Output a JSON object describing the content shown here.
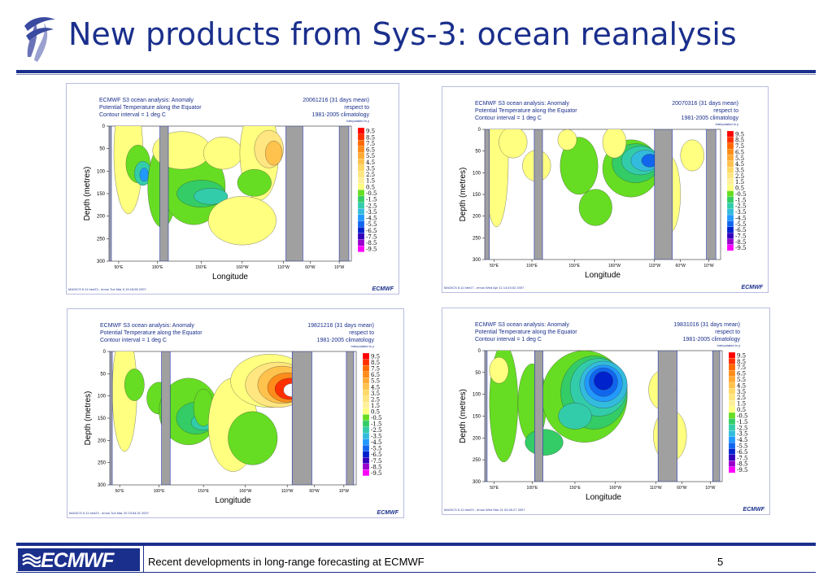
{
  "slide": {
    "title": "New products from Sys-3: ocean reanalysis",
    "footer_text": "Recent developments in long-range forecasting at ECMWF",
    "page_number": "5",
    "footer_logo": "ECMWF",
    "accent_color": "#1a2f8c"
  },
  "legend_levels": [
    "9.5",
    "8.5",
    "7.5",
    "6.5",
    "5.5",
    "4.5",
    "3.5",
    "2.5",
    "1.5",
    "0.5",
    "-0.5",
    "-1.5",
    "-2.5",
    "-3.5",
    "-4.5",
    "-5.5",
    "-6.5",
    "-7.5",
    "-8.5",
    "-9.5"
  ],
  "legend_colors": [
    "#ff0000",
    "#ff3000",
    "#ff6a00",
    "#ff8c1a",
    "#ffaa33",
    "#ffc24d",
    "#ffd866",
    "#ffe680",
    "#fff099",
    "#ffff80",
    "#66dd22",
    "#33cc66",
    "#33ccaa",
    "#33bbdd",
    "#2299ff",
    "#1166ee",
    "#0022cc",
    "#3300bb",
    "#9900cc",
    "#ff00ff"
  ],
  "panels": [
    {
      "header_left": [
        "ECMWF S3 ocean analysis: Anomaly",
        "Potential Temperature along the Equator",
        "Contour interval = 1 deg C"
      ],
      "header_right": [
        "20061216 (31 days mean)",
        "respect to",
        "1981-2005 climatology"
      ],
      "interp": "Interpolated in y",
      "credit": "MAGICS 6.11 bee23 - emos Tue Mar  6 15:18:58 2007",
      "brand": "ECMWF",
      "ylabel": "Depth (metres)",
      "xlabel": "Longitude",
      "yticks": [
        "0",
        "50",
        "100",
        "150",
        "200",
        "250",
        "300"
      ],
      "xticks": [
        "50°E",
        "100°E",
        "150°E",
        "160°W",
        "110°W",
        "60°W",
        "10°W"
      ]
    },
    {
      "header_left": [
        "ECMWF S3 ocean analysis: Anomaly",
        "Potential Temperature along the Equator",
        "Contour interval = 1 deg C"
      ],
      "header_right": [
        "20070316 (31 days mean)",
        "respect to",
        "1981-2005 climatology"
      ],
      "interp": "Interpolated in y",
      "credit": "MAGICS 6.11 bee17 - emos Wed Apr 11 14:43:02 2007",
      "brand": "ECMWF",
      "ylabel": "Depth (metres)",
      "xlabel": "Longitude",
      "yticks": [
        "0",
        "50",
        "100",
        "150",
        "200",
        "250",
        "300"
      ],
      "xticks": [
        "50°E",
        "100°E",
        "150°E",
        "160°W",
        "110°W",
        "60°W",
        "10°W"
      ]
    },
    {
      "header_left": [
        "ECMWF S3 ocean analysis: Anomaly",
        "Potential Temperature along the Equator",
        "Contour interval = 1 deg C"
      ],
      "header_right": [
        "19821216 (31 days mean)",
        "respect to",
        "1981-2005 climatology"
      ],
      "interp": "Interpolated in y",
      "credit": "MAGICS 6.11 bee23 - emos Tue Mar 20 23:54:31 2007",
      "brand": "ECMWF",
      "ylabel": "Depth (metres)",
      "xlabel": "Longitude",
      "yticks": [
        "0",
        "50",
        "100",
        "150",
        "200",
        "250",
        "300"
      ],
      "xticks": [
        "50°E",
        "100°E",
        "150°E",
        "160°W",
        "110°W",
        "60°W",
        "10°W"
      ]
    },
    {
      "header_left": [
        "ECMWF S3 ocean analysis: Anomaly",
        "Potential Temperature along the Equator",
        "Contour interval = 1 deg C"
      ],
      "header_right": [
        "19831016 (31 days mean)",
        "respect to",
        "1981-2005 climatology"
      ],
      "interp": "Interpolated in y",
      "credit": "MAGICS 6.11 bee23 - emos Wed Mar 21 03:26:27 2007",
      "brand": "ECMWF",
      "ylabel": "Depth (metres)",
      "xlabel": "Longitude",
      "yticks": [
        "0",
        "50",
        "100",
        "150",
        "200",
        "250",
        "300"
      ],
      "xticks": [
        "50°E",
        "100°E",
        "150°E",
        "160°W",
        "110°W",
        "60°W",
        "10°W"
      ]
    }
  ]
}
